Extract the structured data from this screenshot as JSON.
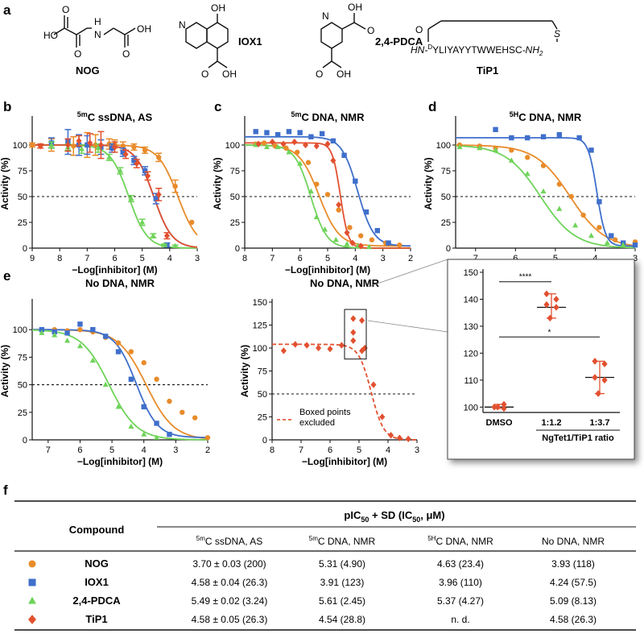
{
  "colors": {
    "NOG": "#e88b2a",
    "IOX1": "#3f6fcb",
    "PDCA": "#6fd35a",
    "TiP1": "#e2502f"
  },
  "panel_a": {
    "letter": "a",
    "compounds": [
      "NOG",
      "IOX1",
      "2,4-PDCA",
      "TiP1"
    ],
    "tip1_sequence": "YLIYAYYTWWEHSC",
    "tip1_prefix": "HN-",
    "tip1_d": "D",
    "tip1_suffix": "-NH",
    "tip1_sub": "2",
    "tip1_s": "S",
    "tip1_o": "O",
    "atoms": {
      "ho": "HO",
      "oh": "OH",
      "o": "O",
      "h": "H",
      "n": "N"
    }
  },
  "chart_data": [
    {
      "panel": "b",
      "type": "scatter",
      "title": "5mC ssDNA, AS",
      "title_sup": "5m",
      "title_rest": "C ssDNA, AS",
      "xlabel": "−Log[inhibitor] (M)",
      "ylabel": "Activity (%)",
      "xlim": [
        9,
        3
      ],
      "ylim": [
        0,
        125
      ],
      "x_reversed": true,
      "xticks": [
        9,
        8,
        7,
        6,
        5,
        4,
        3
      ],
      "yticks": [
        0,
        25,
        50,
        75,
        100
      ],
      "reference_line": 50,
      "series": [
        {
          "name": "NOG",
          "x": [
            9,
            8.3,
            7.5,
            7,
            6.7,
            6.2,
            6,
            5.7,
            5.3,
            4.9,
            4.4,
            3.8,
            3.2
          ],
          "y": [
            100,
            100,
            99,
            100,
            100,
            101,
            101,
            99,
            98,
            95,
            88,
            60,
            25
          ],
          "err": [
            2,
            6,
            9,
            12,
            10,
            5,
            4,
            4,
            3,
            3,
            4,
            6,
            0
          ],
          "fit": {
            "logic50": 3.7,
            "hill": 1.2,
            "top": 100,
            "bottom": 0
          }
        },
        {
          "name": "IOX1",
          "x": [
            8.3,
            7.7,
            7.3,
            7,
            6.5,
            6.1,
            5.7,
            5.3,
            4.9,
            4.5,
            4.1
          ],
          "y": [
            102,
            103,
            100,
            100,
            98,
            97,
            93,
            85,
            75,
            48,
            3
          ],
          "err": [
            5,
            12,
            10,
            9,
            7,
            4,
            4,
            4,
            4,
            5,
            2
          ],
          "fit": {
            "logic50": 4.58,
            "hill": 1.3,
            "top": 100,
            "bottom": 0
          }
        },
        {
          "name": "2,4-PDCA",
          "x": [
            8.3,
            7.7,
            7.2,
            6.6,
            6.2,
            5.8,
            5.4,
            5,
            4.6,
            4.2,
            3.8
          ],
          "y": [
            100,
            98,
            96,
            97,
            88,
            75,
            48,
            25,
            12,
            3,
            2
          ],
          "err": [
            3,
            3,
            4,
            4,
            3,
            3,
            3,
            3,
            2,
            1,
            1
          ],
          "fit": {
            "logic50": 5.49,
            "hill": 1.3,
            "top": 100,
            "bottom": 0
          }
        },
        {
          "name": "TiP1",
          "x": [
            8.7,
            7.7,
            7.3,
            6.9,
            6.5,
            6,
            5.6,
            5.2,
            4.8,
            4.4,
            4.1
          ],
          "y": [
            99,
            100,
            104,
            102,
            100,
            98,
            91,
            82,
            70,
            52,
            12
          ],
          "err": [
            2,
            6,
            5,
            9,
            13,
            5,
            4,
            4,
            4,
            6,
            3
          ],
          "fit": {
            "logic50": 4.58,
            "hill": 1.3,
            "top": 100,
            "bottom": 0
          }
        }
      ]
    },
    {
      "panel": "c",
      "type": "scatter",
      "title": "5mC DNA, NMR",
      "title_sup": "5m",
      "title_rest": "C DNA, NMR",
      "xlabel": "−Log[inhibitor] (M)",
      "ylabel": "Activity (%)",
      "xlim": [
        8,
        2
      ],
      "ylim": [
        0,
        125
      ],
      "x_reversed": true,
      "xticks": [
        8,
        7,
        6,
        5,
        4,
        3,
        2
      ],
      "yticks": [
        0,
        25,
        50,
        75,
        100
      ],
      "reference_line": 50,
      "series": [
        {
          "name": "NOG",
          "x": [
            7.6,
            7.3,
            6.9,
            6.5,
            6.1,
            5.7,
            5.4,
            5,
            4.6,
            4.2,
            3.8,
            3.4,
            2.9,
            2.4
          ],
          "y": [
            101,
            102,
            99,
            97,
            93,
            83,
            62,
            52,
            37,
            20,
            12,
            8,
            5,
            3
          ],
          "fit": {
            "logic50": 5.31,
            "hill": 1.2,
            "top": 100,
            "bottom": 2
          }
        },
        {
          "name": "IOX1",
          "x": [
            7.6,
            7.2,
            6.8,
            6.4,
            6,
            5.6,
            5.2,
            4.8,
            4.4,
            4,
            3.6,
            3.2,
            2.8
          ],
          "y": [
            113,
            112,
            110,
            113,
            112,
            108,
            111,
            104,
            90,
            65,
            35,
            17,
            5
          ],
          "fit": {
            "logic50": 3.91,
            "hill": 1.5,
            "top": 108,
            "bottom": 2
          }
        },
        {
          "name": "2,4-PDCA",
          "x": [
            7.6,
            7.2,
            6.8,
            6.4,
            6,
            5.6,
            5.4,
            5.1,
            4.7,
            4.3,
            3.9,
            3.5
          ],
          "y": [
            100,
            98,
            98,
            93,
            82,
            55,
            30,
            18,
            8,
            4,
            2,
            1
          ],
          "fit": {
            "logic50": 5.61,
            "hill": 1.5,
            "top": 100,
            "bottom": 0
          }
        },
        {
          "name": "TiP1",
          "x": [
            7.5,
            7,
            6.6,
            6.2,
            5.8,
            5.4,
            5,
            4.8,
            4.6,
            4.3,
            4.1,
            3.8
          ],
          "y": [
            101,
            103,
            101,
            103,
            100,
            99,
            101,
            85,
            42,
            15,
            5,
            2
          ],
          "fit": {
            "logic50": 4.54,
            "hill": 3.0,
            "top": 102,
            "bottom": 0
          }
        }
      ]
    },
    {
      "panel": "d",
      "type": "scatter",
      "title": "5hC DNA, NMR",
      "title_sup": "5H",
      "title_rest": "C DNA, NMR",
      "xlabel": "−Log[inhibitor] (M)",
      "ylabel": "Activity (%)",
      "xlim": [
        7.5,
        3
      ],
      "ylim": [
        0,
        125
      ],
      "x_reversed": true,
      "xticks": [
        7,
        6,
        5,
        4,
        3
      ],
      "yticks": [
        0,
        25,
        50,
        75,
        100
      ],
      "reference_line": 50,
      "series": [
        {
          "name": "NOG",
          "x": [
            7.4,
            6.9,
            6.5,
            6.1,
            5.7,
            5.3,
            4.9,
            4.6,
            4.3,
            3.9,
            3.5,
            3
          ],
          "y": [
            100,
            99,
            97,
            95,
            88,
            80,
            62,
            50,
            32,
            20,
            8,
            6
          ],
          "fit": {
            "logic50": 4.63,
            "hill": 1.0,
            "top": 100,
            "bottom": 0
          }
        },
        {
          "name": "IOX1",
          "x": [
            6.5,
            6.1,
            5.7,
            5.3,
            4.9,
            4.4,
            4.1,
            3.9,
            3.6,
            3.3,
            3
          ],
          "y": [
            115,
            107,
            107,
            108,
            110,
            107,
            95,
            45,
            12,
            5,
            3
          ],
          "fit": {
            "logic50": 3.96,
            "hill": 4.0,
            "top": 107,
            "bottom": 2
          }
        },
        {
          "name": "2,4-PDCA",
          "x": [
            7.4,
            6.9,
            6.5,
            6.1,
            5.7,
            5.3,
            4.9,
            4.5,
            4.1,
            3.7,
            3.3
          ],
          "y": [
            98,
            97,
            95,
            85,
            72,
            55,
            38,
            22,
            12,
            5,
            3
          ],
          "fit": {
            "logic50": 5.37,
            "hill": 1.0,
            "top": 100,
            "bottom": 0
          }
        }
      ]
    },
    {
      "panel": "e-left",
      "type": "scatter",
      "title": "No DNA, NMR",
      "xlabel": "−Log[inhibitor] (M)",
      "ylabel": "Activity (%)",
      "xlim": [
        7.5,
        2
      ],
      "ylim": [
        0,
        125
      ],
      "x_reversed": true,
      "xticks": [
        7,
        6,
        5,
        4,
        3,
        2
      ],
      "yticks": [
        0,
        25,
        50,
        75,
        100
      ],
      "reference_line": 50,
      "series": [
        {
          "name": "NOG",
          "x": [
            7.2,
            6.8,
            6.4,
            6.0,
            5.6,
            5.2,
            4.8,
            4.4,
            4.0,
            3.6,
            3.2,
            2.8,
            2.4,
            2.0
          ],
          "y": [
            100,
            100,
            99,
            100,
            98,
            93,
            88,
            80,
            70,
            55,
            35,
            25,
            20,
            2
          ],
          "fit": {
            "logic50": 3.93,
            "hill": 1.0,
            "top": 100,
            "bottom": 0
          }
        },
        {
          "name": "IOX1",
          "x": [
            7.2,
            6.8,
            6.4,
            6.0,
            5.6,
            5.2,
            4.8,
            4.4,
            4.0,
            3.6,
            3.2
          ],
          "y": [
            100,
            98,
            97,
            105,
            100,
            94,
            80,
            55,
            30,
            15,
            5
          ],
          "fit": {
            "logic50": 4.24,
            "hill": 1.3,
            "top": 100,
            "bottom": 2
          }
        },
        {
          "name": "2,4-PDCA",
          "x": [
            7.2,
            6.8,
            6.4,
            6.0,
            5.6,
            5.2,
            4.8,
            4.4,
            4.0,
            3.6
          ],
          "y": [
            97,
            95,
            90,
            85,
            72,
            50,
            30,
            12,
            5,
            2
          ],
          "fit": {
            "logic50": 5.09,
            "hill": 1.0,
            "top": 100,
            "bottom": 0
          }
        }
      ]
    },
    {
      "panel": "e-mid",
      "type": "scatter",
      "title": "No DNA, NMR",
      "xlabel": "−Log[inhibitor] (M)",
      "ylabel": "Activity (%)",
      "xlim": [
        8,
        3
      ],
      "ylim": [
        0,
        150
      ],
      "x_reversed": true,
      "xticks": [
        8,
        7,
        6,
        5,
        4,
        3
      ],
      "yticks": [
        0,
        25,
        50,
        75,
        100,
        125,
        150
      ],
      "reference_line": 50,
      "legend": "Boxed points excluded",
      "legend_lines": [
        "Boxed points",
        "excluded"
      ],
      "series": [
        {
          "name": "TiP1",
          "x": [
            7.6,
            7.2,
            6.8,
            6.4,
            6.0,
            5.6,
            5.2,
            4.8,
            4.5,
            4.2,
            3.9,
            3.6,
            3.3
          ],
          "y": [
            97,
            104,
            103,
            100,
            99,
            103,
            108,
            100,
            60,
            25,
            5,
            2,
            1
          ],
          "fit": {
            "logic50": 4.58,
            "hill": 2.0,
            "top": 104,
            "bottom": 0,
            "dashed": true
          }
        },
        {
          "name": "TiP1 boxed",
          "x": [
            5.2,
            4.9,
            5.2,
            4.9
          ],
          "y": [
            132,
            130,
            117,
            97
          ],
          "excluded": true
        }
      ]
    },
    {
      "panel": "e-inset",
      "type": "scatter",
      "categories": [
        "DMSO",
        "1:1.2",
        "1:3.7"
      ],
      "xlabel": "NgTet1/TiP1 ratio",
      "ylim": [
        98,
        150
      ],
      "yticks": [
        100,
        110,
        120,
        130,
        140,
        150
      ],
      "values": [
        [
          100,
          101,
          100,
          99.5
        ],
        [
          142,
          137,
          133,
          140,
          138
        ],
        [
          117,
          110,
          105,
          116,
          111
        ]
      ],
      "means": [
        100,
        137,
        111
      ],
      "significance": [
        {
          "from": 0,
          "to": 1,
          "label": "****"
        },
        {
          "from": 0,
          "to": 2,
          "label": "*"
        }
      ]
    },
    {
      "panel": "f",
      "type": "table",
      "title_prefix": "pIC",
      "title_sub": "50",
      "title_mid": " + SD (IC",
      "title_sub2": "50",
      "title_suffix": ", μM)",
      "compound_header": "Compound",
      "columns": [
        {
          "sup": "5m",
          "rest": "C ssDNA, AS"
        },
        {
          "sup": "5m",
          "rest": "C DNA, NMR"
        },
        {
          "sup": "5H",
          "rest": "C DNA, NMR"
        },
        {
          "sup": "",
          "rest": "No DNA, NMR"
        }
      ],
      "rows": [
        {
          "name": "NOG",
          "marker": "circle",
          "values": [
            "3.70 ± 0.03 (200)",
            "5.31 (4.90)",
            "4.63 (23.4)",
            "3.93 (118)"
          ]
        },
        {
          "name": "IOX1",
          "marker": "square",
          "values": [
            "4.58 ± 0.04 (26.3)",
            "3.91 (123)",
            "3.96 (110)",
            "4.24 (57.5)"
          ]
        },
        {
          "name": "2,4-PDCA",
          "marker": "triangle",
          "values": [
            "5.49 ± 0.02 (3.24)",
            "5.61 (2.45)",
            "5.37 (4.27)",
            "5.09 (8.13)"
          ]
        },
        {
          "name": "TiP1",
          "marker": "diamond",
          "values": [
            "4.58 ± 0.05 (26.3)",
            "4.54 (28.8)",
            "n. d.",
            "4.58 (26.3)"
          ]
        }
      ]
    }
  ],
  "panel_letters": {
    "b": "b",
    "c": "c",
    "d": "d",
    "e": "e",
    "f": "f"
  }
}
